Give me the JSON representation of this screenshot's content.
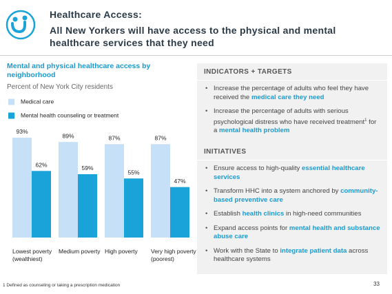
{
  "header": {
    "title": "Healthcare Access:",
    "subtitle": "All New Yorkers will have access to the physical and mental healthcare services that they need"
  },
  "chart_data": {
    "type": "bar",
    "title": "Mental and physical healthcare access by neighborhood",
    "subtitle": "Percent of New York City residents",
    "categories": [
      "Lowest poverty (wealthiest)",
      "Medium poverty",
      "High poverty",
      "Very high poverty (poorest)"
    ],
    "series": [
      {
        "name": "Medical care",
        "color": "#c6e0f7",
        "values": [
          93,
          89,
          87,
          87
        ],
        "value_labels": [
          "93%",
          "89%",
          "87%",
          "87%"
        ]
      },
      {
        "name": "Mental health counseling or treatment",
        "color": "#1aa3d9",
        "values": [
          62,
          59,
          55,
          47
        ],
        "value_labels": [
          "62%",
          "59%",
          "55%",
          "47%"
        ]
      }
    ],
    "ylim": [
      0,
      100
    ],
    "legend": "top-left"
  },
  "panels": [
    {
      "heading": "INDICATORS + TARGETS",
      "bullets": [
        {
          "runs": [
            {
              "text": "Increase the percentage of adults who feel they have received the "
            },
            {
              "text": "medical care they need",
              "em": true
            }
          ]
        },
        {
          "runs": [
            {
              "text": "Increase the percentage of adults with serious psychological distress who have received treatment"
            },
            {
              "text": "1",
              "sup": true
            },
            {
              "text": " for a "
            },
            {
              "text": "mental health problem",
              "em": true
            }
          ]
        }
      ]
    },
    {
      "heading": "INITIATIVES",
      "bullets": [
        {
          "runs": [
            {
              "text": "Ensure access to high-quality "
            },
            {
              "text": "essential healthcare services",
              "em": true
            }
          ]
        },
        {
          "runs": [
            {
              "text": "Transform HHC into a system anchored by "
            },
            {
              "text": "community-based preventive care",
              "em": true
            }
          ]
        },
        {
          "runs": [
            {
              "text": "Establish "
            },
            {
              "text": "health clinics",
              "em": true
            },
            {
              "text": " in high-need communities"
            }
          ]
        },
        {
          "runs": [
            {
              "text": "Expand access points for "
            },
            {
              "text": "mental health and substance abuse care",
              "em": true
            }
          ]
        },
        {
          "runs": [
            {
              "text": "Work with the State to "
            },
            {
              "text": "integrate patient data",
              "em": true
            },
            {
              "text": " across healthcare systems"
            }
          ]
        }
      ]
    }
  ],
  "footnote": "1 Defined as counseling or taking a prescription medication",
  "page_number": "33"
}
